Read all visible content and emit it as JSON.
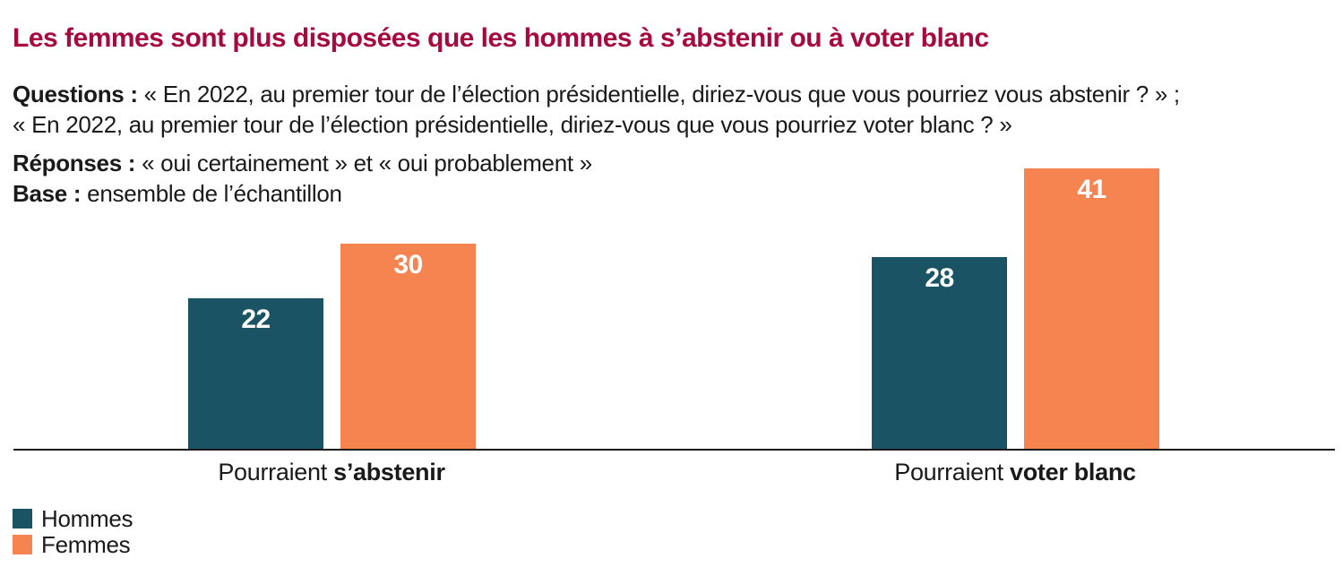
{
  "title": "Les femmes sont plus disposées que les hommes à s’abstenir ou à voter blanc",
  "intro": {
    "questions_label": "Questions :",
    "questions_line1": " « En 2022, au premier tour de l’élection présidentielle, diriez-vous que vous pourriez vous abstenir ? » ;",
    "questions_line2": "« En 2022, au premier tour de l’élection présidentielle, diriez-vous que vous pourriez voter blanc ? »",
    "responses_label": "Réponses :",
    "responses_text": " « oui certainement » et « oui probablement »",
    "base_label": "Base :",
    "base_text": " ensemble de l’échantillon"
  },
  "chart_data": {
    "type": "bar",
    "categories": [
      "Pourraient s’abstenir",
      "Pourraient voter blanc"
    ],
    "category_rich": [
      {
        "normal": "Pourraient ",
        "bold": "s’abstenir"
      },
      {
        "normal": "Pourraient ",
        "bold": "voter blanc"
      }
    ],
    "series": [
      {
        "name": "Hommes",
        "color": "#1a5464",
        "values": [
          22,
          28
        ]
      },
      {
        "name": "Femmes",
        "color": "#f58451",
        "values": [
          30,
          41
        ]
      }
    ],
    "ylim": [
      0,
      41
    ],
    "grid": false,
    "axis_line_color": "#1a1a1a",
    "value_label_style": "white bold, inside top of bar",
    "legend_position": "bottom-left"
  },
  "legend": {
    "items": [
      {
        "label": "Hommes",
        "color": "#1a5464"
      },
      {
        "label": "Femmes",
        "color": "#f58451"
      }
    ]
  },
  "colors": {
    "title": "#a6093d",
    "text": "#1a1a1a",
    "background": "#ffffff"
  }
}
